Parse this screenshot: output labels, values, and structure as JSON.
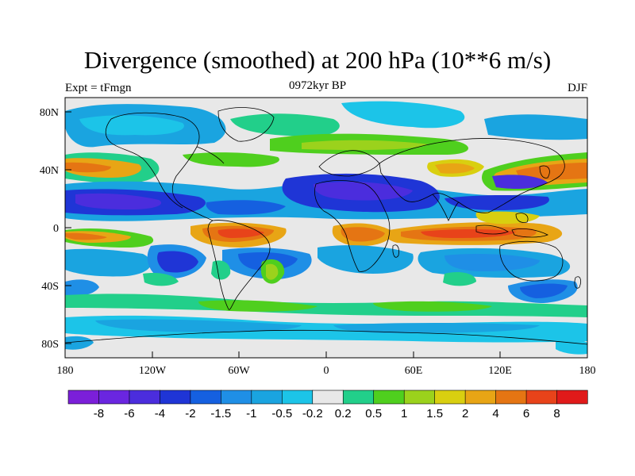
{
  "title": "Divergence (smoothed) at 200 hPa (10**6 m/s)",
  "subtitle_left": "Expt = tFmgn",
  "subtitle_center": "0972kyr BP",
  "subtitle_right": "DJF",
  "lat_ticks": [
    "80N",
    "40N",
    "0",
    "40S",
    "80S"
  ],
  "lon_ticks": [
    "180",
    "120W",
    "60W",
    "0",
    "60E",
    "120E",
    "180"
  ],
  "colorbar": {
    "colors": [
      "#7b1fd9",
      "#6a26e0",
      "#4b2ddd",
      "#1f35d6",
      "#1560e0",
      "#1f8fe6",
      "#1aa4e0",
      "#1cc4e8",
      "#e8e8e8",
      "#22cf8a",
      "#4fcf1e",
      "#9bd21c",
      "#d9cf10",
      "#e8a515",
      "#e57513",
      "#e8431a",
      "#e01a1a"
    ],
    "labels": [
      "-8",
      "-6",
      "-4",
      "-2",
      "-1.5",
      "-1",
      "-0.5",
      "-0.2",
      "0.2",
      "0.5",
      "1",
      "1.5",
      "2",
      "4",
      "6",
      "8"
    ]
  }
}
